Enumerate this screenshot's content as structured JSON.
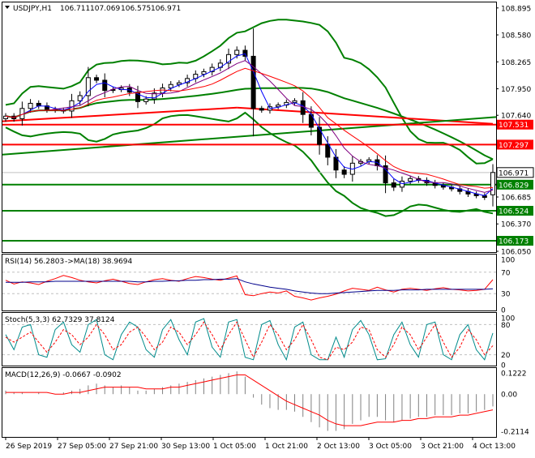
{
  "colors": {
    "frame": "#000000",
    "grid": "#c0c0c0",
    "candle": "#000000",
    "band": "#008000",
    "level_red": "#ff0000",
    "level_green": "#008000",
    "ma_blue": "#0000ff",
    "ma_purple": "#800080",
    "ma_red": "#ff0000",
    "rsi": "#ff0000",
    "rsi_ma": "#00008b",
    "stoch_main": "#008b8b",
    "stoch_signal": "#ff0000",
    "macd": "#808080",
    "macd_signal": "#ff0000",
    "label_bg": "#ffffff"
  },
  "chart_data": [
    {
      "type": "candlestick",
      "title": "USDJPY,H1",
      "ohlc": {
        "open": "106.711",
        "high": "107.069",
        "low": "106.575",
        "close": "106.971"
      },
      "ylim": [
        106.05,
        108.95
      ],
      "yticks": [
        "108.895",
        "108.580",
        "108.265",
        "107.950",
        "107.640",
        "106.685",
        "106.370",
        "106.050"
      ],
      "xticks": [
        "26 Sep 2019",
        "27 Sep 05:00",
        "27 Sep 21:00",
        "30 Sep 13:00",
        "1 Oct 05:00",
        "1 Oct 21:00",
        "2 Oct 13:00",
        "3 Oct 05:00",
        "3 Oct 21:00",
        "4 Oct 13:00"
      ],
      "closes": [
        107.63,
        107.6,
        107.72,
        107.78,
        107.75,
        107.71,
        107.7,
        107.69,
        107.81,
        107.87,
        108.08,
        108.05,
        107.93,
        107.94,
        107.96,
        107.91,
        107.8,
        107.83,
        107.9,
        107.96,
        108.0,
        108.02,
        108.07,
        108.12,
        108.15,
        108.2,
        108.25,
        108.35,
        108.4,
        108.33,
        107.72,
        107.7,
        107.74,
        107.76,
        107.79,
        107.81,
        107.65,
        107.5,
        107.3,
        107.15,
        107.0,
        106.95,
        107.08,
        107.1,
        107.12,
        107.05,
        106.85,
        106.8,
        106.87,
        106.9,
        106.88,
        106.85,
        106.82,
        106.8,
        106.78,
        106.75,
        106.72,
        106.7,
        106.68,
        106.97
      ],
      "levels": [
        {
          "label": "107.531",
          "value": 107.531,
          "color": "red"
        },
        {
          "label": "107.297",
          "value": 107.297,
          "color": "red"
        },
        {
          "label": "106.829",
          "value": 106.829,
          "color": "green"
        },
        {
          "label": "106.524",
          "value": 106.524,
          "color": "green"
        },
        {
          "label": "106.173",
          "value": 106.173,
          "color": "green"
        }
      ],
      "current_price": {
        "label": "106.971",
        "value": 106.971
      }
    },
    {
      "type": "line",
      "title": "RSI(14) 56.2803",
      "signal_title": "->MA(18) 38.9694",
      "ylim": [
        0,
        100
      ],
      "yticks": [
        "100",
        "70",
        "30",
        "0"
      ],
      "levels": [
        70,
        30
      ],
      "series": [
        {
          "values": [
            55,
            48,
            52,
            50,
            47,
            53,
            58,
            64,
            60,
            55,
            52,
            50,
            54,
            57,
            53,
            49,
            47,
            52,
            56,
            58,
            55,
            53,
            58,
            62,
            60,
            57,
            55,
            59,
            63,
            28,
            26,
            30,
            33,
            31,
            35,
            25,
            22,
            18,
            22,
            25,
            29,
            35,
            40,
            38,
            36,
            42,
            37,
            33,
            38,
            40,
            38,
            36,
            39,
            41,
            38,
            37,
            35,
            36,
            38,
            56
          ]
        },
        {
          "values": [
            51,
            51,
            51,
            52,
            52,
            52,
            53,
            53,
            53,
            53,
            53,
            53,
            53,
            53,
            53,
            53,
            52,
            52,
            53,
            53,
            54,
            54,
            55,
            55,
            56,
            56,
            57,
            57,
            58,
            52,
            48,
            45,
            42,
            40,
            38,
            35,
            33,
            31,
            30,
            30,
            31,
            32,
            33,
            34,
            35,
            36,
            36,
            36,
            37,
            37,
            37,
            38,
            38,
            38,
            38,
            38,
            38,
            38,
            38,
            39
          ]
        }
      ]
    },
    {
      "type": "line",
      "title": "Stoch(5,3,3) 62.7329 37.8124",
      "ylim": [
        0,
        100
      ],
      "yticks": [
        "100",
        "80",
        "20",
        "0"
      ],
      "levels": [
        80,
        20
      ],
      "series": [
        {
          "values": [
            60,
            30,
            75,
            80,
            20,
            15,
            70,
            85,
            40,
            25,
            80,
            90,
            20,
            10,
            60,
            85,
            75,
            30,
            15,
            70,
            90,
            50,
            20,
            85,
            92,
            35,
            15,
            85,
            90,
            15,
            10,
            80,
            88,
            40,
            10,
            75,
            85,
            20,
            10,
            10,
            55,
            15,
            70,
            88,
            60,
            10,
            12,
            60,
            85,
            40,
            15,
            80,
            85,
            20,
            10,
            60,
            80,
            30,
            10,
            63
          ]
        },
        {
          "values": [
            55,
            45,
            55,
            65,
            45,
            25,
            45,
            70,
            60,
            40,
            55,
            80,
            60,
            30,
            40,
            65,
            75,
            55,
            30,
            45,
            75,
            65,
            40,
            60,
            85,
            60,
            30,
            60,
            85,
            50,
            15,
            45,
            80,
            60,
            30,
            50,
            80,
            50,
            15,
            10,
            35,
            30,
            45,
            75,
            70,
            30,
            15,
            40,
            75,
            60,
            30,
            55,
            80,
            45,
            15,
            35,
            70,
            50,
            20,
            38
          ]
        }
      ]
    },
    {
      "type": "bar",
      "title": "MACD(12,26,9) -0.0667 -0.0902",
      "ylim": [
        -0.24,
        0.14
      ],
      "yticks": [
        "0.1222",
        "0.00",
        "-0.2114"
      ],
      "series": [
        {
          "values": [
            0.02,
            0.01,
            0.01,
            0.0,
            0.01,
            0.0,
            0.0,
            0.01,
            0.02,
            0.03,
            0.05,
            0.06,
            0.05,
            0.04,
            0.05,
            0.04,
            0.02,
            0.02,
            0.03,
            0.04,
            0.05,
            0.06,
            0.07,
            0.08,
            0.09,
            0.1,
            0.11,
            0.12,
            0.13,
            0.1,
            -0.02,
            -0.06,
            -0.08,
            -0.09,
            -0.09,
            -0.1,
            -0.13,
            -0.16,
            -0.19,
            -0.21,
            -0.21,
            -0.2,
            -0.17,
            -0.15,
            -0.13,
            -0.13,
            -0.15,
            -0.16,
            -0.15,
            -0.14,
            -0.13,
            -0.13,
            -0.12,
            -0.12,
            -0.12,
            -0.11,
            -0.11,
            -0.1,
            -0.09,
            -0.07
          ]
        },
        {
          "values": [
            0.01,
            0.01,
            0.01,
            0.01,
            0.01,
            0.01,
            0.0,
            0.0,
            0.01,
            0.01,
            0.02,
            0.03,
            0.04,
            0.04,
            0.04,
            0.04,
            0.04,
            0.03,
            0.03,
            0.03,
            0.04,
            0.04,
            0.05,
            0.06,
            0.07,
            0.08,
            0.09,
            0.1,
            0.11,
            0.11,
            0.08,
            0.05,
            0.02,
            -0.01,
            -0.04,
            -0.06,
            -0.08,
            -0.1,
            -0.12,
            -0.15,
            -0.17,
            -0.18,
            -0.18,
            -0.18,
            -0.17,
            -0.16,
            -0.16,
            -0.16,
            -0.15,
            -0.15,
            -0.14,
            -0.14,
            -0.13,
            -0.13,
            -0.13,
            -0.12,
            -0.12,
            -0.11,
            -0.1,
            -0.09
          ]
        }
      ]
    }
  ]
}
